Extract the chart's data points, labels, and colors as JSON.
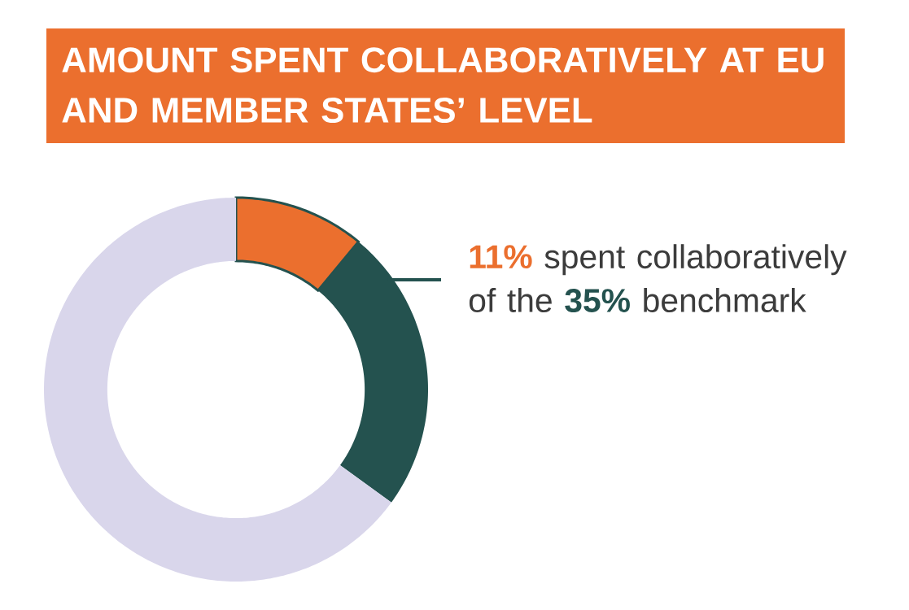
{
  "chart_data": {
    "type": "donut",
    "title": "AMOUNT SPENT COLLABORATIVELY AT EU AND MEMBER STATES’ LEVEL",
    "categories": [
      null,
      null,
      null
    ],
    "values": [
      11,
      24,
      65
    ],
    "colors": [
      "#eb6f2e",
      "#24524f",
      "#d9d6eb"
    ],
    "annotations": [
      "**11%** spent collaboratively of the **35%** benchmark"
    ]
  }
}
